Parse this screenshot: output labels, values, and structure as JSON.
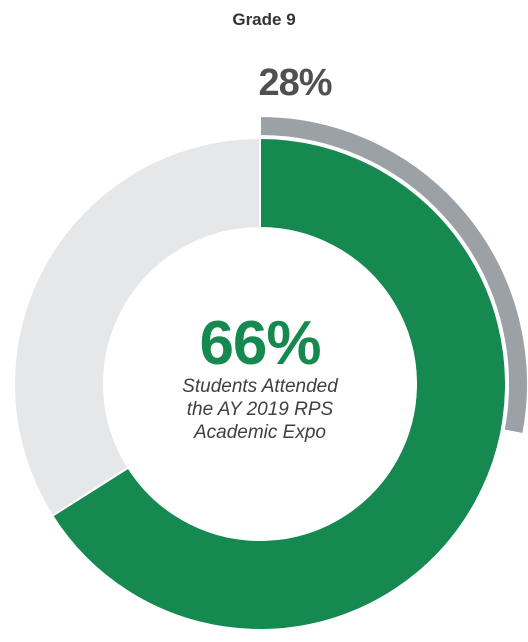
{
  "chart_data": {
    "type": "pie",
    "title": "Grade 9",
    "series": [
      {
        "ring": "inner",
        "values": [
          66,
          34
        ],
        "labels": [
          "66%",
          ""
        ],
        "colors": [
          "#158950",
          "#e6e7e9"
        ]
      },
      {
        "ring": "outer",
        "values": [
          28,
          72
        ],
        "labels": [
          "28%",
          ""
        ],
        "colors": [
          "#9ca1a6",
          "#ffffff"
        ]
      }
    ],
    "center_value": "66%",
    "center_caption": [
      "Students Attended",
      "the AY 2019 RPS",
      "Academic Expo"
    ],
    "outer_label": "28%",
    "colors": {
      "accent": "#158950",
      "center_text": "#158950"
    }
  }
}
